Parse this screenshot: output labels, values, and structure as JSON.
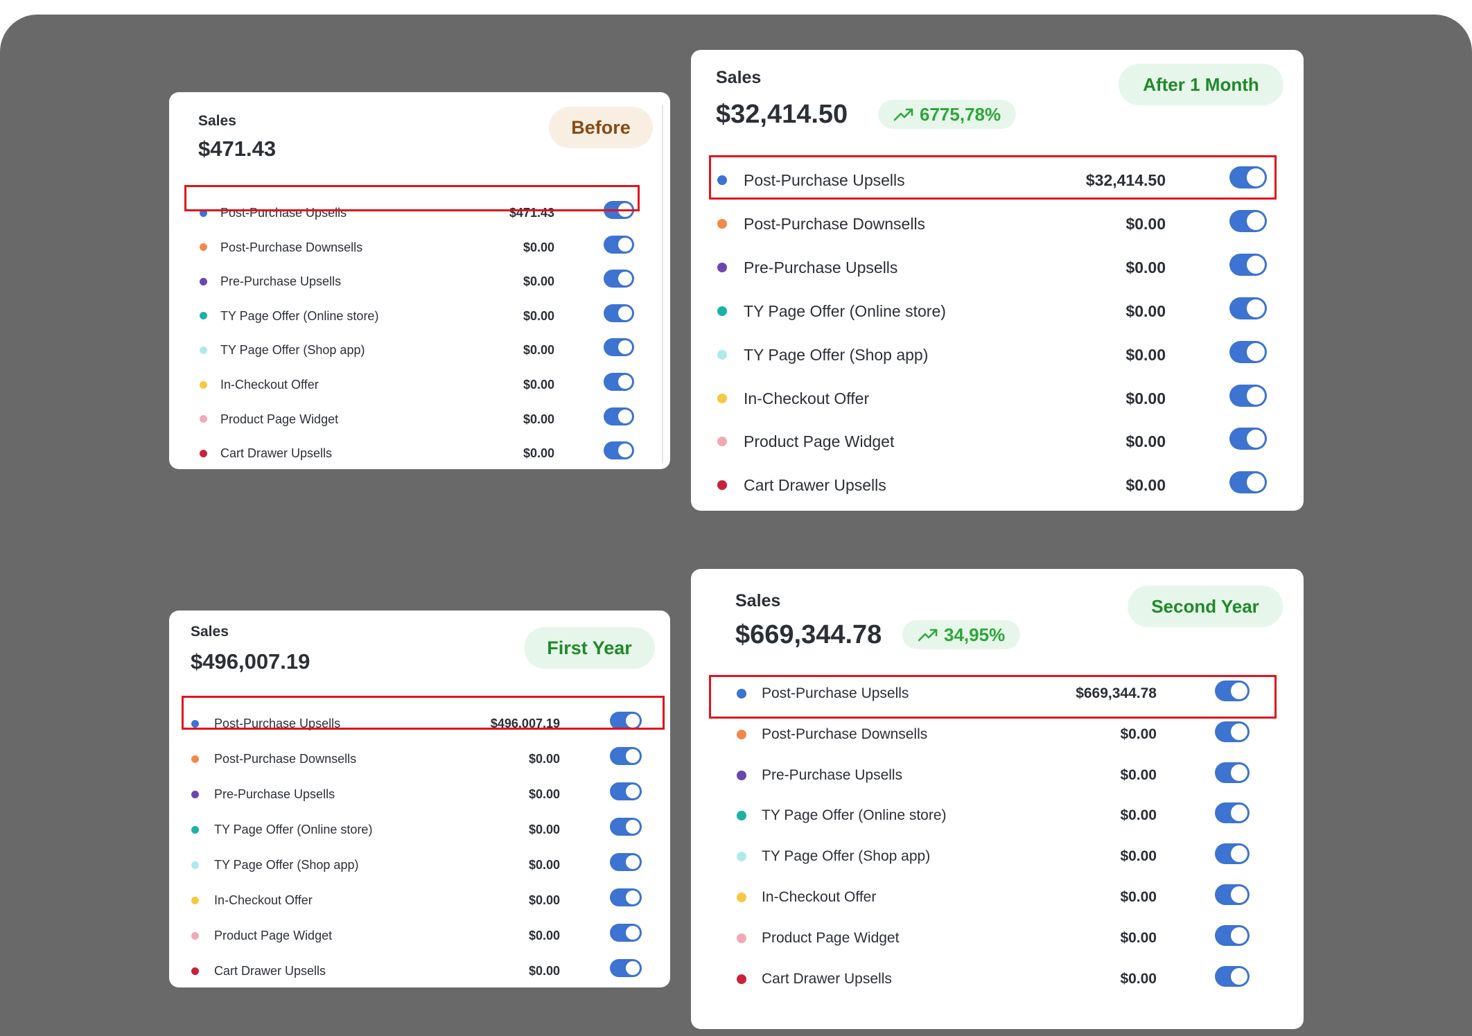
{
  "colors": {
    "toggle": "#3d73d1",
    "highlight": "#e0141c",
    "dots": [
      "#3b73d4",
      "#f0894a",
      "#6b46b0",
      "#1cb3a6",
      "#aeeaec",
      "#f7c843",
      "#f4a9b4",
      "#c8233a"
    ]
  },
  "cards": [
    {
      "id": "before",
      "sales_label": "Sales",
      "total": "$471.43",
      "pill": "Before",
      "growth": null,
      "rows": [
        {
          "label": "Post-Purchase Upsells",
          "value": "$471.43",
          "on": true,
          "highlighted": true
        },
        {
          "label": "Post-Purchase Downsells",
          "value": "$0.00",
          "on": true
        },
        {
          "label": "Pre-Purchase Upsells",
          "value": "$0.00",
          "on": true
        },
        {
          "label": "TY Page Offer (Online store)",
          "value": "$0.00",
          "on": true
        },
        {
          "label": "TY Page Offer (Shop app)",
          "value": "$0.00",
          "on": true
        },
        {
          "label": "In-Checkout Offer",
          "value": "$0.00",
          "on": true
        },
        {
          "label": "Product Page Widget",
          "value": "$0.00",
          "on": true
        },
        {
          "label": "Cart Drawer Upsells",
          "value": "$0.00",
          "on": true
        }
      ]
    },
    {
      "id": "month",
      "sales_label": "Sales",
      "total": "$32,414.50",
      "pill": "After 1 Month",
      "growth": {
        "icon": "trending-up-icon",
        "text": "6775,78%"
      },
      "rows": [
        {
          "label": "Post-Purchase Upsells",
          "value": "$32,414.50",
          "on": true,
          "highlighted": true
        },
        {
          "label": "Post-Purchase Downsells",
          "value": "$0.00",
          "on": true
        },
        {
          "label": "Pre-Purchase Upsells",
          "value": "$0.00",
          "on": true
        },
        {
          "label": "TY Page Offer (Online store)",
          "value": "$0.00",
          "on": true
        },
        {
          "label": "TY Page Offer (Shop app)",
          "value": "$0.00",
          "on": true
        },
        {
          "label": "In-Checkout Offer",
          "value": "$0.00",
          "on": true
        },
        {
          "label": "Product Page Widget",
          "value": "$0.00",
          "on": true
        },
        {
          "label": "Cart Drawer Upsells",
          "value": "$0.00",
          "on": true
        }
      ]
    },
    {
      "id": "first",
      "sales_label": "Sales",
      "total": "$496,007.19",
      "pill": "First Year",
      "growth": null,
      "rows": [
        {
          "label": "Post-Purchase Upsells",
          "value": "$496,007.19",
          "on": true,
          "highlighted": true
        },
        {
          "label": "Post-Purchase Downsells",
          "value": "$0.00",
          "on": true
        },
        {
          "label": "Pre-Purchase Upsells",
          "value": "$0.00",
          "on": true
        },
        {
          "label": "TY Page Offer (Online store)",
          "value": "$0.00",
          "on": true
        },
        {
          "label": "TY Page Offer (Shop app)",
          "value": "$0.00",
          "on": true
        },
        {
          "label": "In-Checkout Offer",
          "value": "$0.00",
          "on": true
        },
        {
          "label": "Product Page Widget",
          "value": "$0.00",
          "on": true
        },
        {
          "label": "Cart Drawer Upsells",
          "value": "$0.00",
          "on": true
        }
      ]
    },
    {
      "id": "second",
      "sales_label": "Sales",
      "total": "$669,344.78",
      "pill": "Second Year",
      "growth": {
        "icon": "trending-up-icon",
        "text": "34,95%"
      },
      "rows": [
        {
          "label": "Post-Purchase Upsells",
          "value": "$669,344.78",
          "on": true,
          "highlighted": true
        },
        {
          "label": "Post-Purchase Downsells",
          "value": "$0.00",
          "on": true
        },
        {
          "label": "Pre-Purchase Upsells",
          "value": "$0.00",
          "on": true
        },
        {
          "label": "TY Page Offer (Online store)",
          "value": "$0.00",
          "on": true
        },
        {
          "label": "TY Page Offer (Shop app)",
          "value": "$0.00",
          "on": true
        },
        {
          "label": "In-Checkout Offer",
          "value": "$0.00",
          "on": true
        },
        {
          "label": "Product Page Widget",
          "value": "$0.00",
          "on": true
        },
        {
          "label": "Cart Drawer Upsells",
          "value": "$0.00",
          "on": true
        }
      ]
    }
  ]
}
